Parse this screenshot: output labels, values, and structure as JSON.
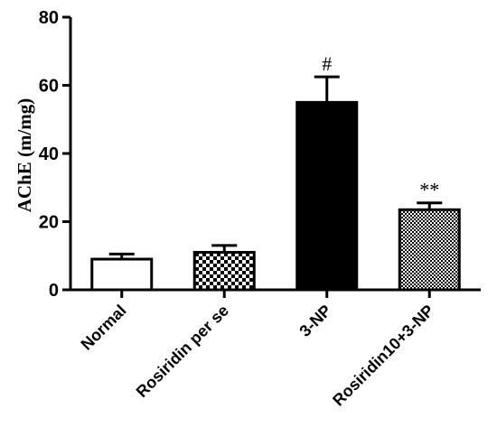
{
  "chart_data": {
    "type": "bar",
    "categories": [
      "Normal",
      "Rosiridin per se",
      "3-NP",
      "Rosiridin10+3-NP"
    ],
    "values": [
      9,
      11,
      55,
      23.5
    ],
    "errors": [
      1.5,
      2,
      7.5,
      2
    ],
    "annotations": [
      "",
      "",
      "#",
      "**"
    ],
    "fills": [
      "white",
      "checker",
      "solid",
      "fine-checker"
    ],
    "ylabel": "AChE (m/mg)",
    "xlabel": "",
    "title": "",
    "ylim": [
      0,
      80
    ],
    "yticks": [
      "0",
      "20",
      "40",
      "60",
      "80"
    ],
    "grid": false,
    "legend": "none",
    "colors": {
      "bar_stroke": "#000000",
      "solid_fill": "#000000",
      "background": "#ffffff"
    }
  }
}
